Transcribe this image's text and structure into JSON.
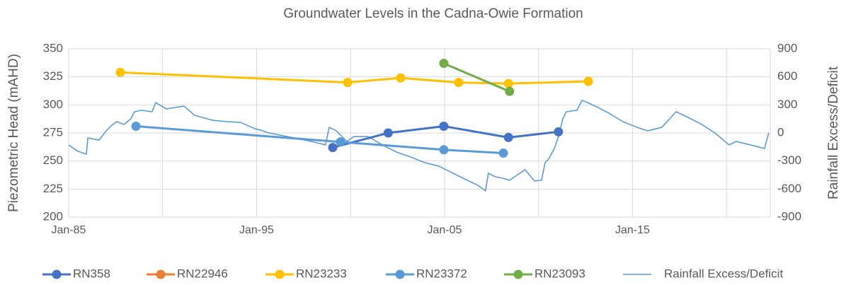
{
  "chart_data": {
    "type": "line",
    "title": "Groundwater Levels in the Cadna-Owie Formation",
    "y_label": "Piezometric Head (mAHD)",
    "y2_label": "Rainfall Excess/Deficit",
    "xlim": [
      1985,
      2022.33
    ],
    "xticks": [
      {
        "value": 1985,
        "label": "Jan-85"
      },
      {
        "value": 1995,
        "label": "Jan-95"
      },
      {
        "value": 2005,
        "label": "Jan-05"
      },
      {
        "value": 2015,
        "label": "Jan-15"
      }
    ],
    "x_minor_grid": [
      1990,
      2000,
      2010,
      2020
    ],
    "ylim": [
      200,
      350
    ],
    "yticks": [
      200,
      225,
      250,
      275,
      300,
      325,
      350
    ],
    "y2lim": [
      -900,
      900
    ],
    "y2ticks": [
      -900,
      -600,
      -300,
      0,
      300,
      600,
      900
    ],
    "grid": true,
    "legend": "bottom",
    "series": [
      {
        "name": "RN358",
        "color": "#4472c4",
        "markers": true,
        "x": [
          1999.05,
          2002.0,
          2004.96,
          2008.4,
          2011.06
        ],
        "values": [
          262,
          275,
          281,
          271,
          276
        ]
      },
      {
        "name": "RN22946",
        "color": "#ed7d31",
        "markers": true,
        "x": [],
        "values": []
      },
      {
        "name": "RN23233",
        "color": "#ffc000",
        "markers": true,
        "x": [
          1987.75,
          1999.84,
          2002.66,
          2005.75,
          2008.4,
          2012.65
        ],
        "values": [
          329,
          320,
          324,
          320,
          319,
          321
        ]
      },
      {
        "name": "RN23372",
        "color": "#5b9bd5",
        "markers": true,
        "x": [
          1988.58,
          1999.46,
          2004.96,
          2008.13
        ],
        "values": [
          281,
          267,
          260,
          257
        ]
      },
      {
        "name": "RN23093",
        "color": "#70ad47",
        "markers": true,
        "x": [
          2004.96,
          2008.46
        ],
        "values": [
          337,
          312
        ]
      },
      {
        "name": "Rainfall Excess/Deficit",
        "color": "#5b9bd5",
        "markers": false,
        "axis": "y2",
        "x": [
          1985.0,
          1985.49,
          1985.94,
          1986.02,
          1986.62,
          1987.0,
          1987.26,
          1987.56,
          1987.94,
          1988.31,
          1988.5,
          1988.88,
          1989.44,
          1989.63,
          1990.2,
          1991.14,
          1991.7,
          1992.65,
          1993.4,
          1994.15,
          1994.91,
          1995.21,
          1995.66,
          1996.41,
          1997.17,
          1997.92,
          1998.67,
          1998.86,
          1999.24,
          1999.8,
          2000.18,
          2000.93,
          2001.69,
          2002.44,
          2003.19,
          2003.94,
          2004.7,
          2005.45,
          2006.21,
          2006.77,
          2007.18,
          2007.33,
          2007.71,
          2008.09,
          2008.46,
          2008.84,
          2009.29,
          2009.78,
          2010.16,
          2010.35,
          2010.54,
          2010.84,
          2011.1,
          2011.29,
          2011.48,
          2012.04,
          2012.31,
          2012.61,
          2013.17,
          2013.74,
          2014.49,
          2015.24,
          2015.81,
          2016.56,
          2017.32,
          2017.88,
          2018.63,
          2019.39,
          2020.14,
          2020.52,
          2021.27,
          2022.02,
          2022.25
        ],
        "values": [
          -128,
          -196,
          -227,
          -53,
          -76,
          23,
          76,
          121,
          91,
          151,
          227,
          242,
          227,
          325,
          257,
          287,
          189,
          136,
          121,
          113,
          45,
          30,
          0,
          -30,
          -60,
          -91,
          -128,
          60,
          23,
          -91,
          -38,
          -38,
          -128,
          -204,
          -257,
          -317,
          -355,
          -431,
          -506,
          -559,
          -620,
          -431,
          -469,
          -484,
          -506,
          -453,
          -393,
          -514,
          -506,
          -317,
          -280,
          -166,
          -15,
          151,
          227,
          242,
          348,
          325,
          272,
          212,
          121,
          60,
          23,
          60,
          227,
          174,
          98,
          0,
          -128,
          -91,
          -128,
          -166,
          0
        ]
      }
    ]
  }
}
